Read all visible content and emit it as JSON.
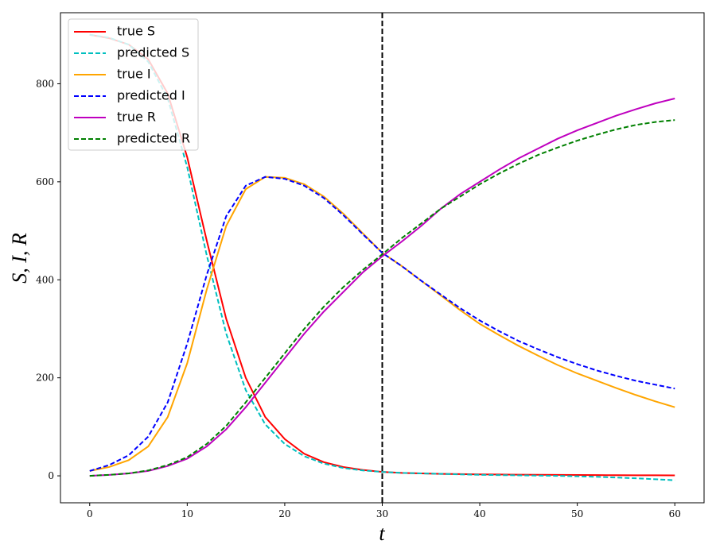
{
  "chart_data": {
    "type": "line",
    "xlabel": "t",
    "ylabel": "S, I, R",
    "x": [
      0,
      2,
      4,
      6,
      8,
      10,
      12,
      14,
      16,
      18,
      20,
      22,
      24,
      26,
      28,
      30,
      32,
      34,
      36,
      38,
      40,
      42,
      44,
      46,
      48,
      50,
      52,
      54,
      56,
      58,
      60
    ],
    "series": [
      {
        "name": "true S",
        "color": "#ff0000",
        "dash": false,
        "values": [
          900,
          893,
          880,
          850,
          780,
          650,
          480,
          320,
          200,
          120,
          75,
          45,
          28,
          18,
          12,
          8,
          6,
          5,
          4,
          3.5,
          3,
          2.7,
          2.4,
          2.1,
          1.9,
          1.7,
          1.5,
          1.3,
          1.2,
          1.1,
          1
        ]
      },
      {
        "name": "predicted S",
        "color": "#00bfbf",
        "dash": true,
        "values": [
          900,
          894,
          880,
          845,
          770,
          630,
          450,
          290,
          175,
          105,
          65,
          40,
          25,
          16,
          11,
          8,
          6,
          5,
          4,
          3,
          2,
          1.5,
          1,
          0.5,
          0,
          -1,
          -2,
          -3.5,
          -5,
          -7,
          -9
        ]
      },
      {
        "name": "true I",
        "color": "#ffa500",
        "dash": false,
        "values": [
          10,
          18,
          32,
          60,
          120,
          230,
          380,
          510,
          585,
          610,
          608,
          595,
          570,
          535,
          495,
          455,
          428,
          398,
          368,
          338,
          310,
          287,
          265,
          245,
          226,
          209,
          194,
          179,
          165,
          152,
          140
        ]
      },
      {
        "name": "predicted I",
        "color": "#0000ff",
        "dash": true,
        "values": [
          10,
          22,
          42,
          80,
          150,
          270,
          410,
          530,
          592,
          610,
          606,
          592,
          567,
          532,
          493,
          455,
          428,
          398,
          370,
          342,
          317,
          295,
          275,
          258,
          242,
          228,
          215,
          204,
          194,
          186,
          178
        ]
      },
      {
        "name": "true R",
        "color": "#bf00bf",
        "dash": false,
        "values": [
          0,
          2,
          5,
          10,
          20,
          35,
          60,
          95,
          140,
          190,
          240,
          290,
          335,
          375,
          415,
          448,
          478,
          510,
          545,
          575,
          600,
          625,
          648,
          668,
          688,
          705,
          720,
          735,
          748,
          760,
          770
        ]
      },
      {
        "name": "predicted R",
        "color": "#008000",
        "dash": true,
        "values": [
          0,
          2,
          5,
          11,
          22,
          38,
          65,
          102,
          150,
          200,
          250,
          300,
          345,
          385,
          420,
          452,
          485,
          515,
          545,
          570,
          595,
          617,
          637,
          655,
          670,
          684,
          696,
          707,
          716,
          722,
          726
        ]
      }
    ],
    "vline": 30,
    "xlim": [
      -3,
      63
    ],
    "ylim": [
      -55,
      945
    ],
    "xticks": [
      0,
      10,
      20,
      30,
      40,
      50,
      60
    ],
    "yticks": [
      0,
      200,
      400,
      600,
      800
    ],
    "legend": "upper left"
  }
}
